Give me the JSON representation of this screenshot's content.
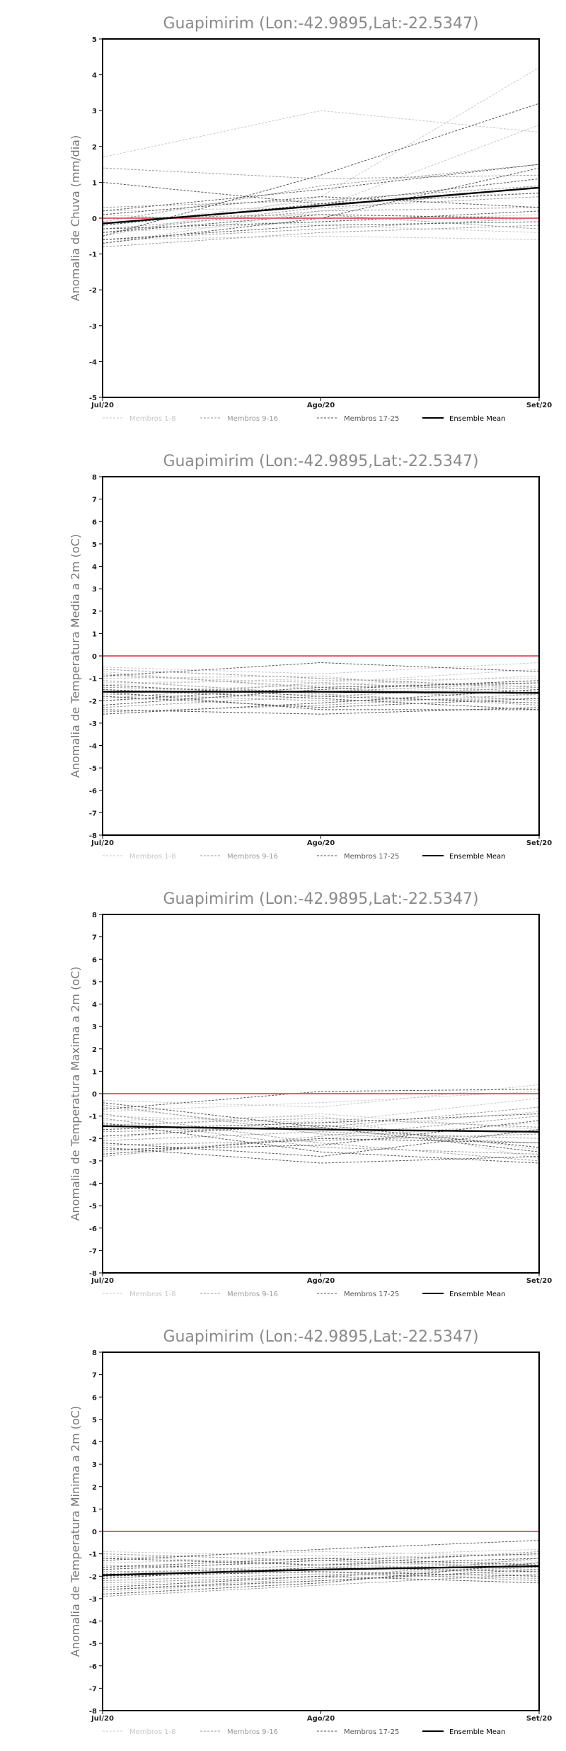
{
  "colors": {
    "members_1_8": "#c8c8c8",
    "members_9_16": "#9a9a9a",
    "members_17_25": "#555555",
    "ensemble_mean": "#000000",
    "zero_line": "#e06070"
  },
  "legend": {
    "g1": "Membros 1-8",
    "g2": "Membros 9-16",
    "g3": "Membros 17-25",
    "mean": "Ensemble Mean"
  },
  "chart_data": [
    {
      "type": "line",
      "title": "Guapimirim  (Lon:-42.9895,Lat:-22.5347)",
      "ylabel": "Anomalia de Chuva (mm/dia)",
      "xlabel": "",
      "categories": [
        "Jul/20",
        "Ago/20",
        "Set/20"
      ],
      "ylim": [
        -5,
        5
      ],
      "yticks": [
        -5,
        -4,
        -3,
        -2,
        -1,
        0,
        1,
        2,
        3,
        4,
        5
      ],
      "grid": false,
      "legend_position": "bottom",
      "series": [
        {
          "group": 1,
          "values": [
            1.7,
            3.0,
            2.4
          ]
        },
        {
          "group": 1,
          "values": [
            -0.2,
            0.5,
            0.7
          ]
        },
        {
          "group": 1,
          "values": [
            -0.6,
            -0.5,
            -0.6
          ]
        },
        {
          "group": 1,
          "values": [
            0.2,
            0.3,
            2.6
          ]
        },
        {
          "group": 1,
          "values": [
            -0.4,
            -0.1,
            0.1
          ]
        },
        {
          "group": 1,
          "values": [
            -0.7,
            0.2,
            0.9
          ]
        },
        {
          "group": 1,
          "values": [
            0.1,
            -0.2,
            -0.4
          ]
        },
        {
          "group": 1,
          "values": [
            -0.5,
            0.6,
            4.2
          ]
        },
        {
          "group": 2,
          "values": [
            1.4,
            1.1,
            1.2
          ]
        },
        {
          "group": 2,
          "values": [
            -0.3,
            0.2,
            0.3
          ]
        },
        {
          "group": 2,
          "values": [
            0.3,
            0.5,
            0.9
          ]
        },
        {
          "group": 2,
          "values": [
            -0.8,
            -0.4,
            -0.2
          ]
        },
        {
          "group": 2,
          "values": [
            -0.1,
            0.9,
            1.5
          ]
        },
        {
          "group": 2,
          "values": [
            -0.6,
            -0.3,
            0.0
          ]
        },
        {
          "group": 2,
          "values": [
            0.0,
            0.1,
            -0.3
          ]
        },
        {
          "group": 2,
          "values": [
            -0.4,
            0.3,
            0.6
          ]
        },
        {
          "group": 3,
          "values": [
            1.0,
            0.4,
            0.7
          ]
        },
        {
          "group": 3,
          "values": [
            -0.5,
            1.2,
            3.2
          ]
        },
        {
          "group": 3,
          "values": [
            0.2,
            0.8,
            1.5
          ]
        },
        {
          "group": 3,
          "values": [
            -0.3,
            -0.1,
            0.2
          ]
        },
        {
          "group": 3,
          "values": [
            -0.7,
            0.0,
            1.4
          ]
        },
        {
          "group": 3,
          "values": [
            0.1,
            0.6,
            0.3
          ]
        },
        {
          "group": 3,
          "values": [
            -0.6,
            -0.2,
            -0.1
          ]
        },
        {
          "group": 3,
          "values": [
            -0.2,
            0.4,
            1.1
          ]
        },
        {
          "group": 3,
          "values": [
            -0.4,
            0.1,
            0.0
          ]
        },
        {
          "group": 0,
          "values": [
            -0.15,
            0.35,
            0.85
          ]
        }
      ],
      "reference_line": 0
    },
    {
      "type": "line",
      "title": "Guapimirim  (Lon:-42.9895,Lat:-22.5347)",
      "ylabel": "Anomalia de Temperatura Media a 2m (oC)",
      "xlabel": "",
      "categories": [
        "Jul/20",
        "Ago/20",
        "Set/20"
      ],
      "ylim": [
        -8,
        8
      ],
      "yticks": [
        -8,
        -7,
        -6,
        -5,
        -4,
        -3,
        -2,
        -1,
        0,
        1,
        2,
        3,
        4,
        5,
        6,
        7,
        8
      ],
      "grid": false,
      "legend_position": "bottom",
      "series": [
        {
          "group": 1,
          "values": [
            -0.5,
            -0.8,
            -0.3
          ]
        },
        {
          "group": 1,
          "values": [
            -0.9,
            -1.2,
            -0.6
          ]
        },
        {
          "group": 1,
          "values": [
            -1.3,
            -1.0,
            -1.5
          ]
        },
        {
          "group": 1,
          "values": [
            -0.7,
            -1.5,
            -1.1
          ]
        },
        {
          "group": 1,
          "values": [
            -1.6,
            -1.3,
            -0.9
          ]
        },
        {
          "group": 1,
          "values": [
            -1.0,
            -0.9,
            -1.8
          ]
        },
        {
          "group": 1,
          "values": [
            -2.0,
            -1.7,
            -1.3
          ]
        },
        {
          "group": 1,
          "values": [
            -1.2,
            -1.1,
            -1.0
          ]
        },
        {
          "group": 2,
          "values": [
            -0.8,
            -1.4,
            -2.0
          ]
        },
        {
          "group": 2,
          "values": [
            -1.4,
            -1.6,
            -1.2
          ]
        },
        {
          "group": 2,
          "values": [
            -1.9,
            -1.2,
            -1.6
          ]
        },
        {
          "group": 2,
          "values": [
            -2.3,
            -1.8,
            -1.4
          ]
        },
        {
          "group": 2,
          "values": [
            -1.1,
            -1.7,
            -2.2
          ]
        },
        {
          "group": 2,
          "values": [
            -1.7,
            -2.0,
            -1.9
          ]
        },
        {
          "group": 2,
          "values": [
            -2.5,
            -2.2,
            -1.7
          ]
        },
        {
          "group": 2,
          "values": [
            -0.6,
            -1.0,
            -1.4
          ]
        },
        {
          "group": 3,
          "values": [
            -2.4,
            -2.6,
            -2.3
          ]
        },
        {
          "group": 3,
          "values": [
            -1.5,
            -1.9,
            -2.4
          ]
        },
        {
          "group": 3,
          "values": [
            -2.2,
            -1.5,
            -1.1
          ]
        },
        {
          "group": 3,
          "values": [
            -0.9,
            -0.3,
            -0.7
          ]
        },
        {
          "group": 3,
          "values": [
            -1.8,
            -2.3,
            -1.9
          ]
        },
        {
          "group": 3,
          "values": [
            -2.6,
            -2.1,
            -1.5
          ]
        },
        {
          "group": 3,
          "values": [
            -1.3,
            -1.8,
            -2.1
          ]
        },
        {
          "group": 3,
          "values": [
            -2.0,
            -1.4,
            -1.2
          ]
        },
        {
          "group": 3,
          "values": [
            -1.6,
            -2.4,
            -2.4
          ]
        },
        {
          "group": 0,
          "values": [
            -1.6,
            -1.6,
            -1.65
          ]
        }
      ],
      "reference_line": 0
    },
    {
      "type": "line",
      "title": "Guapimirim  (Lon:-42.9895,Lat:-22.5347)",
      "ylabel": "Anomalia de Temperatura Maxima a 2m (oC)",
      "xlabel": "",
      "categories": [
        "Jul/20",
        "Ago/20",
        "Set/20"
      ],
      "ylim": [
        -8,
        8
      ],
      "yticks": [
        -8,
        -7,
        -6,
        -5,
        -4,
        -3,
        -2,
        -1,
        0,
        1,
        2,
        3,
        4,
        5,
        6,
        7,
        8
      ],
      "grid": false,
      "legend_position": "bottom",
      "series": [
        {
          "group": 1,
          "values": [
            -0.3,
            -0.6,
            0.4
          ]
        },
        {
          "group": 1,
          "values": [
            -1.0,
            -1.3,
            -0.2
          ]
        },
        {
          "group": 1,
          "values": [
            -1.5,
            -0.9,
            -1.6
          ]
        },
        {
          "group": 1,
          "values": [
            -0.6,
            -1.6,
            -0.8
          ]
        },
        {
          "group": 1,
          "values": [
            -2.0,
            -1.2,
            -2.5
          ]
        },
        {
          "group": 1,
          "values": [
            -2.6,
            -2.0,
            -1.3
          ]
        },
        {
          "group": 1,
          "values": [
            -1.2,
            -1.0,
            -2.9
          ]
        },
        {
          "group": 1,
          "values": [
            -0.8,
            -0.4,
            0.1
          ]
        },
        {
          "group": 2,
          "values": [
            -0.5,
            -1.8,
            -2.2
          ]
        },
        {
          "group": 2,
          "values": [
            -1.7,
            -1.5,
            -0.6
          ]
        },
        {
          "group": 2,
          "values": [
            -2.3,
            -2.1,
            -1.8
          ]
        },
        {
          "group": 2,
          "values": [
            -1.1,
            -2.4,
            -2.7
          ]
        },
        {
          "group": 2,
          "values": [
            -2.8,
            -1.9,
            -1.0
          ]
        },
        {
          "group": 2,
          "values": [
            -1.4,
            -1.1,
            -1.5
          ]
        },
        {
          "group": 2,
          "values": [
            -0.9,
            -2.2,
            -3.0
          ]
        },
        {
          "group": 2,
          "values": [
            -2.1,
            -1.7,
            -2.0
          ]
        },
        {
          "group": 3,
          "values": [
            -2.4,
            -3.1,
            -2.8
          ]
        },
        {
          "group": 3,
          "values": [
            -0.7,
            0.1,
            0.2
          ]
        },
        {
          "group": 3,
          "values": [
            -1.9,
            -1.4,
            -2.4
          ]
        },
        {
          "group": 3,
          "values": [
            -2.5,
            -2.3,
            -1.2
          ]
        },
        {
          "group": 3,
          "values": [
            -1.3,
            -2.6,
            -3.1
          ]
        },
        {
          "group": 3,
          "values": [
            -2.7,
            -2.0,
            -2.2
          ]
        },
        {
          "group": 3,
          "values": [
            -1.6,
            -1.3,
            -0.9
          ]
        },
        {
          "group": 3,
          "values": [
            -0.4,
            -1.5,
            -2.6
          ]
        },
        {
          "group": 3,
          "values": [
            -2.2,
            -2.8,
            -1.6
          ]
        },
        {
          "group": 0,
          "values": [
            -1.45,
            -1.6,
            -1.7
          ]
        }
      ],
      "reference_line": 0
    },
    {
      "type": "line",
      "title": "Guapimirim  (Lon:-42.9895,Lat:-22.5347)",
      "ylabel": "Anomalia de Temperatura Minima a 2m (oC)",
      "xlabel": "",
      "categories": [
        "Jul/20",
        "Ago/20",
        "Set/20"
      ],
      "ylim": [
        -8,
        8
      ],
      "yticks": [
        -8,
        -7,
        -6,
        -5,
        -4,
        -3,
        -2,
        -1,
        0,
        1,
        2,
        3,
        4,
        5,
        6,
        7,
        8
      ],
      "grid": false,
      "legend_position": "bottom",
      "series": [
        {
          "group": 1,
          "values": [
            -0.9,
            -1.1,
            -0.8
          ]
        },
        {
          "group": 1,
          "values": [
            -1.4,
            -1.2,
            -1.0
          ]
        },
        {
          "group": 1,
          "values": [
            -2.0,
            -1.6,
            -1.3
          ]
        },
        {
          "group": 1,
          "values": [
            -1.1,
            -1.5,
            -1.7
          ]
        },
        {
          "group": 1,
          "values": [
            -2.4,
            -2.0,
            -1.5
          ]
        },
        {
          "group": 1,
          "values": [
            -1.6,
            -1.4,
            -2.0
          ]
        },
        {
          "group": 1,
          "values": [
            -2.7,
            -2.2,
            -1.8
          ]
        },
        {
          "group": 1,
          "values": [
            -1.2,
            -0.9,
            -1.1
          ]
        },
        {
          "group": 2,
          "values": [
            -1.8,
            -1.7,
            -1.4
          ]
        },
        {
          "group": 2,
          "values": [
            -2.2,
            -1.9,
            -2.1
          ]
        },
        {
          "group": 2,
          "values": [
            -1.0,
            -1.3,
            -1.6
          ]
        },
        {
          "group": 2,
          "values": [
            -2.6,
            -2.1,
            -1.2
          ]
        },
        {
          "group": 2,
          "values": [
            -1.5,
            -1.8,
            -2.2
          ]
        },
        {
          "group": 2,
          "values": [
            -2.9,
            -2.4,
            -1.9
          ]
        },
        {
          "group": 2,
          "values": [
            -1.9,
            -1.5,
            -0.9
          ]
        },
        {
          "group": 2,
          "values": [
            -2.3,
            -2.0,
            -1.6
          ]
        },
        {
          "group": 3,
          "values": [
            -2.8,
            -2.3,
            -1.4
          ]
        },
        {
          "group": 3,
          "values": [
            -1.3,
            -0.8,
            -0.4
          ]
        },
        {
          "group": 3,
          "values": [
            -2.5,
            -2.0,
            -2.3
          ]
        },
        {
          "group": 3,
          "values": [
            -1.7,
            -1.3,
            -1.0
          ]
        },
        {
          "group": 3,
          "values": [
            -2.1,
            -1.6,
            -1.8
          ]
        },
        {
          "group": 3,
          "values": [
            -1.2,
            -1.5,
            -1.2
          ]
        },
        {
          "group": 3,
          "values": [
            -2.6,
            -2.2,
            -1.7
          ]
        },
        {
          "group": 3,
          "values": [
            -1.6,
            -1.2,
            -1.5
          ]
        },
        {
          "group": 3,
          "values": [
            -2.0,
            -1.8,
            -2.0
          ]
        },
        {
          "group": 0,
          "values": [
            -1.95,
            -1.7,
            -1.55
          ]
        }
      ],
      "reference_line": 0
    }
  ]
}
